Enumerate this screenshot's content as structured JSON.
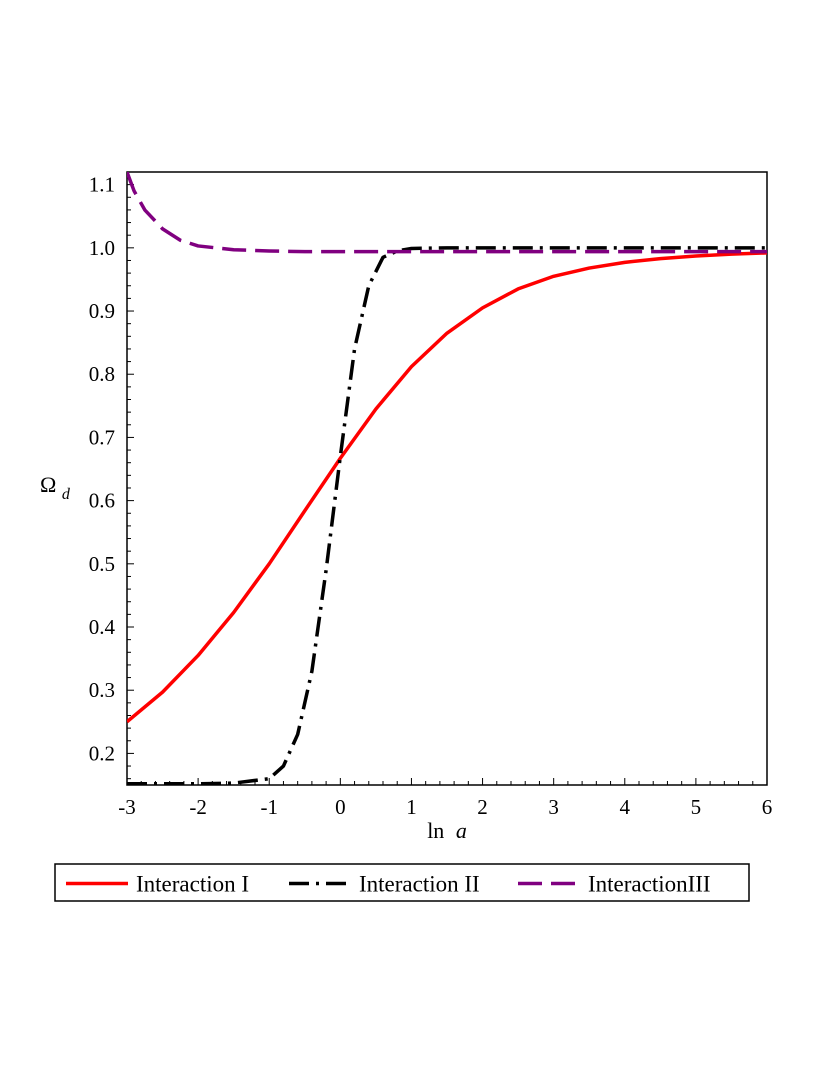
{
  "chart_data": {
    "type": "line",
    "xlabel": {
      "prefix": "ln",
      "var": "a"
    },
    "ylabel": {
      "symbol": "Ω",
      "subscript": "d"
    },
    "xlim": [
      -3,
      6
    ],
    "ylim": [
      0.15,
      1.12
    ],
    "xticks": [
      -3,
      -2,
      -1,
      0,
      1,
      2,
      3,
      4,
      5,
      6
    ],
    "xtick_labels": [
      "-3",
      "-2",
      "-1",
      "0",
      "1",
      "2",
      "3",
      "4",
      "5",
      "6"
    ],
    "yticks": [
      0.2,
      0.3,
      0.4,
      0.5,
      0.6,
      0.7,
      0.8,
      0.9,
      1.0,
      1.1
    ],
    "ytick_labels": [
      "0.2",
      "0.3",
      "0.4",
      "0.5",
      "0.6",
      "0.7",
      "0.8",
      "0.9",
      "1.0",
      "1.1"
    ],
    "grid": false,
    "legend_position": "bottom",
    "series": [
      {
        "name": "Interaction I",
        "color": "#ff0000",
        "dash": "solid",
        "x": [
          -3,
          -2.5,
          -2,
          -1.5,
          -1,
          -0.5,
          0,
          0.5,
          1,
          1.5,
          2,
          2.5,
          3,
          3.5,
          4,
          4.5,
          5,
          5.5,
          6
        ],
        "y": [
          0.25,
          0.297,
          0.355,
          0.423,
          0.5,
          0.584,
          0.667,
          0.745,
          0.812,
          0.865,
          0.905,
          0.935,
          0.955,
          0.968,
          0.977,
          0.983,
          0.987,
          0.99,
          0.992
        ]
      },
      {
        "name": "Interaction II",
        "color": "#000000",
        "dash": "dashdot",
        "x": [
          -3,
          -2,
          -1.5,
          -1,
          -0.8,
          -0.6,
          -0.4,
          -0.2,
          0,
          0.2,
          0.4,
          0.6,
          0.8,
          1,
          1.5,
          2,
          3,
          4,
          5,
          6
        ],
        "y": [
          0.152,
          0.152,
          0.153,
          0.16,
          0.18,
          0.23,
          0.33,
          0.49,
          0.67,
          0.84,
          0.94,
          0.985,
          0.995,
          0.999,
          1.0,
          1.0,
          1.0,
          1.0,
          1.0,
          1.0
        ]
      },
      {
        "name": "InteractionIII",
        "color": "#800080",
        "dash": "dashed",
        "x": [
          -3,
          -2.9,
          -2.75,
          -2.5,
          -2.25,
          -2,
          -1.5,
          -1,
          -0.5,
          0,
          1,
          2,
          3,
          4,
          5,
          6
        ],
        "y": [
          1.12,
          1.09,
          1.06,
          1.03,
          1.012,
          1.003,
          0.997,
          0.995,
          0.994,
          0.994,
          0.994,
          0.994,
          0.994,
          0.994,
          0.994,
          0.994
        ]
      }
    ]
  }
}
